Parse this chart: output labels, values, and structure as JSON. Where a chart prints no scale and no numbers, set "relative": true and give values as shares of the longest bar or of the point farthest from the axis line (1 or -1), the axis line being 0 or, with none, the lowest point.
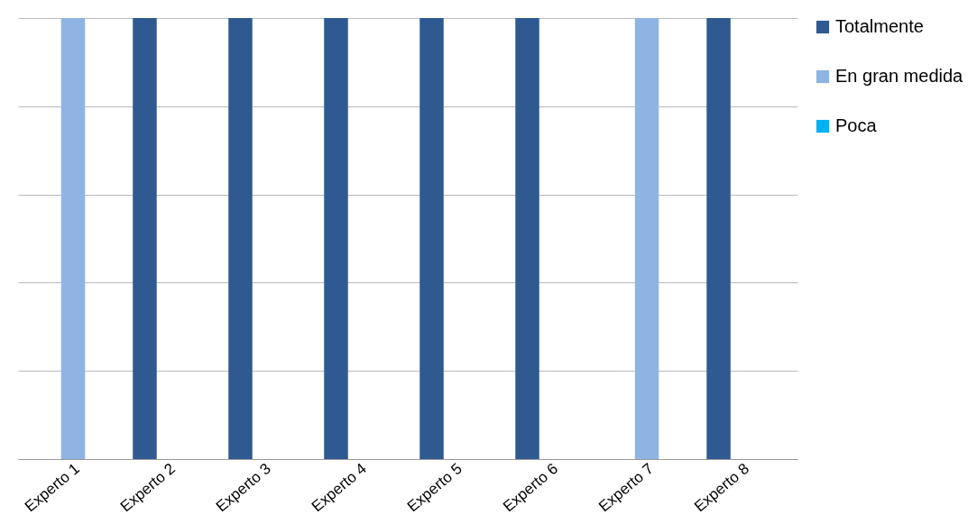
{
  "chart_data": {
    "type": "bar",
    "relative": true,
    "grid": "y",
    "legend": "right",
    "categories": [
      "Experto 1",
      "Experto 2",
      "Experto 3",
      "Experto 4",
      "Experto 5",
      "Experto 6",
      "Experto 7",
      "Experto 8"
    ],
    "series": [
      {
        "name": "Totalmente",
        "color": "#2e5a91",
        "values": [
          0,
          1,
          1,
          1,
          1,
          1,
          0,
          1
        ]
      },
      {
        "name": "En  gran medida",
        "color": "#8eb4e3",
        "values": [
          1,
          0,
          0,
          0,
          0,
          0,
          1,
          0
        ]
      },
      {
        "name": "Poca",
        "color": "#00b0f0",
        "values": [
          0,
          0,
          0,
          0,
          0,
          0,
          0,
          0
        ]
      }
    ]
  }
}
